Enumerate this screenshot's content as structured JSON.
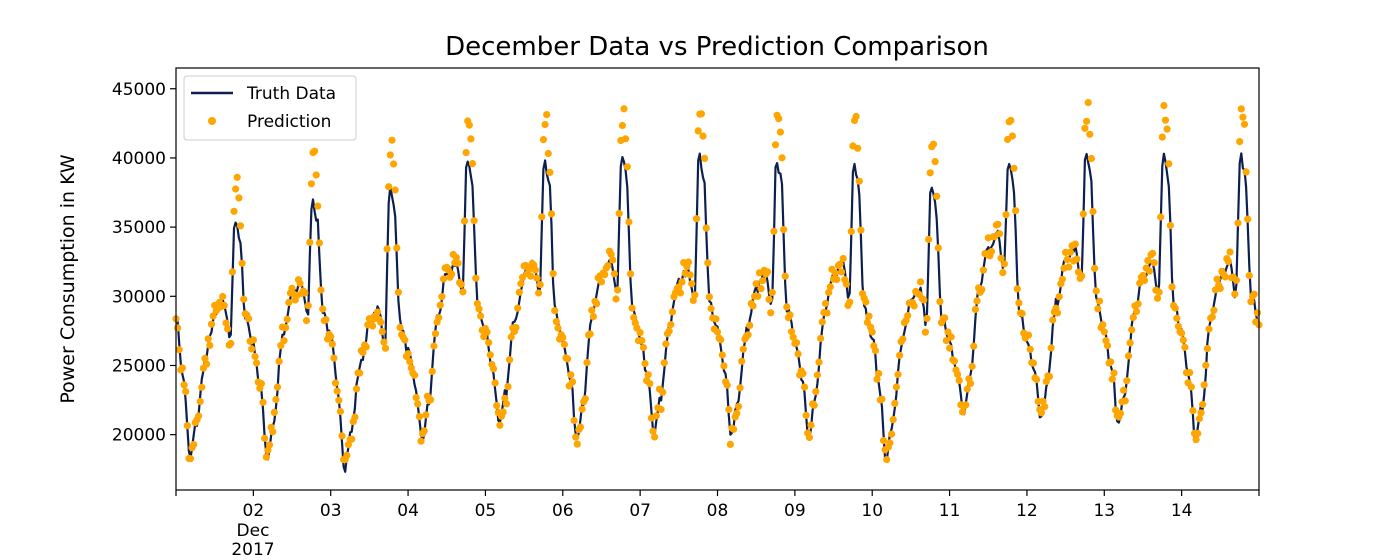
{
  "chart_data": {
    "type": "line",
    "title": "December Data vs Prediction Comparison",
    "xlabel": "",
    "ylabel": "Power Consumption in KW",
    "xlim": [
      1.0,
      15.0
    ],
    "ylim": [
      16000,
      46500
    ],
    "x_ticks": [
      {
        "value": 2,
        "label": "02"
      },
      {
        "value": 3,
        "label": "03"
      },
      {
        "value": 4,
        "label": "04"
      },
      {
        "value": 5,
        "label": "05"
      },
      {
        "value": 6,
        "label": "06"
      },
      {
        "value": 7,
        "label": "07"
      },
      {
        "value": 8,
        "label": "08"
      },
      {
        "value": 9,
        "label": "09"
      },
      {
        "value": 10,
        "label": "10"
      },
      {
        "value": 11,
        "label": "11"
      },
      {
        "value": 12,
        "label": "12"
      },
      {
        "value": 13,
        "label": "13"
      },
      {
        "value": 14,
        "label": "14"
      }
    ],
    "x_tick_sublabels": [
      "Dec",
      "2017"
    ],
    "y_ticks": [
      20000,
      25000,
      30000,
      35000,
      40000,
      45000
    ],
    "y_tick_labels": [
      "20000",
      "25000",
      "30000",
      "35000",
      "40000",
      "45000"
    ],
    "legend": {
      "position": "top-left",
      "entries": [
        {
          "label": "Truth Data",
          "marker": "line"
        },
        {
          "label": "Prediction",
          "marker": "dot"
        }
      ]
    },
    "colors": {
      "truth": "#0d1f4f",
      "prediction": "#ffa500"
    },
    "daily_profile": {
      "description": "keypoints per day as [hour, kW]",
      "days": [
        {
          "day": 1,
          "trough": 18200,
          "midday": 28500,
          "peak": 35600,
          "night": 26500
        },
        {
          "day": 2,
          "trough": 18300,
          "midday": 30000,
          "peak": 37200,
          "night": 27000
        },
        {
          "day": 3,
          "trough": 17600,
          "midday": 28000,
          "peak": 37900,
          "night": 26000
        },
        {
          "day": 4,
          "trough": 19500,
          "midday": 31500,
          "peak": 40100,
          "night": 27500
        },
        {
          "day": 5,
          "trough": 20500,
          "midday": 31500,
          "peak": 40000,
          "night": 27000
        },
        {
          "day": 6,
          "trough": 19800,
          "midday": 31500,
          "peak": 40200,
          "night": 27000
        },
        {
          "day": 7,
          "trough": 20000,
          "midday": 31000,
          "peak": 40300,
          "night": 27500
        },
        {
          "day": 8,
          "trough": 20000,
          "midday": 30500,
          "peak": 40000,
          "night": 27000
        },
        {
          "day": 9,
          "trough": 20000,
          "midday": 31500,
          "peak": 39800,
          "night": 27000
        },
        {
          "day": 10,
          "trough": 18200,
          "midday": 29500,
          "peak": 38000,
          "night": 26500
        },
        {
          "day": 11,
          "trough": 21500,
          "midday": 33500,
          "peak": 40000,
          "night": 27000
        },
        {
          "day": 12,
          "trough": 21000,
          "midday": 32500,
          "peak": 40400,
          "night": 27500
        },
        {
          "day": 13,
          "trough": 20500,
          "midday": 31500,
          "peak": 40200,
          "night": 27500
        },
        {
          "day": 14,
          "trough": 19500,
          "midday": 31500,
          "peak": 40300,
          "night": 28000
        }
      ]
    },
    "prediction_peak_offset": 3500
  }
}
